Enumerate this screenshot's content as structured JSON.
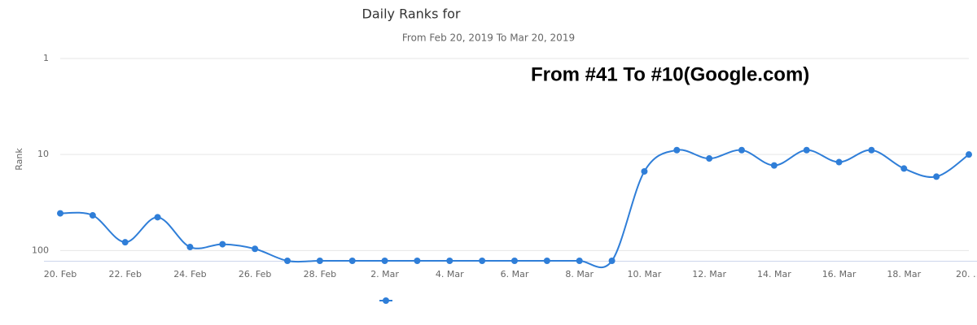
{
  "chart_data": {
    "type": "line",
    "title": "Daily Ranks for",
    "subtitle": "From Feb 20, 2019 To Mar 20, 2019",
    "annotation": "From #41 To #10(Google.com)",
    "y_label": "Rank",
    "categories": [
      "20. Feb",
      null,
      "22. Feb",
      null,
      "24. Feb",
      null,
      "26. Feb",
      null,
      "28. Feb",
      null,
      "2. Mar",
      null,
      "4. Mar",
      null,
      "6. Mar",
      null,
      "8. Mar",
      null,
      "10. Mar",
      null,
      "12. Mar",
      null,
      "14. Mar",
      null,
      "16. Mar",
      null,
      "18. Mar",
      null,
      "20. …"
    ],
    "series": [
      {
        "color": "#2f7ed8",
        "values": [
          41,
          43,
          82,
          45,
          92,
          86,
          96,
          128,
          128,
          128,
          128,
          128,
          128,
          128,
          128,
          128,
          128,
          128,
          15,
          9,
          11,
          9,
          13,
          9,
          12,
          9,
          14,
          17,
          10
        ]
      }
    ],
    "ylim": [
      1,
      128
    ],
    "yticks": [
      1,
      10,
      100
    ],
    "log_scale": true,
    "reversed": true,
    "grid": true
  }
}
